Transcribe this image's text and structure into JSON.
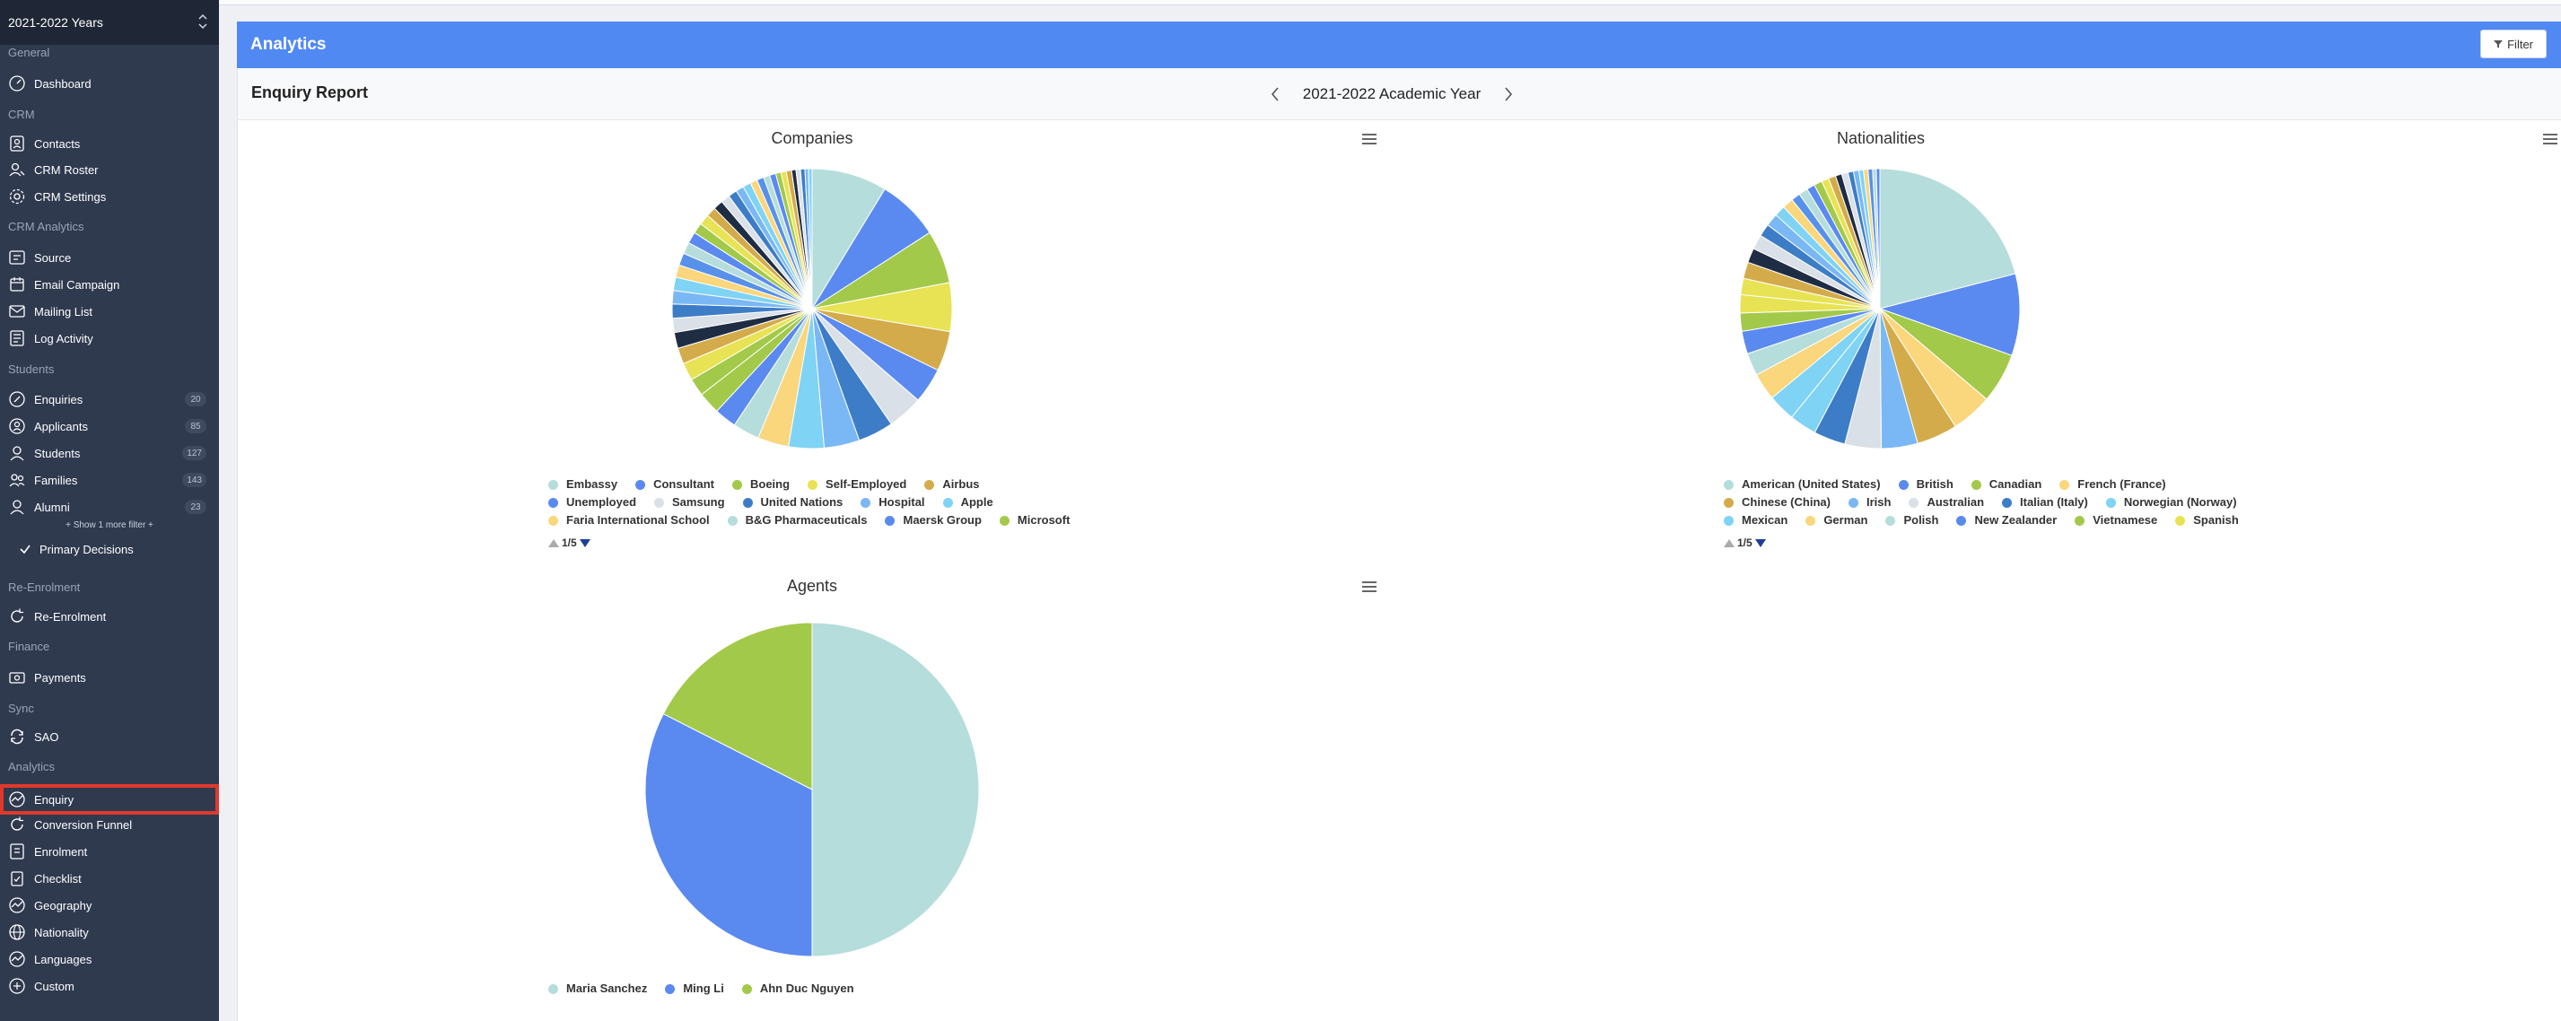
{
  "sidebar": {
    "year_select": "2021-2022 Years",
    "sections": {
      "general": "General",
      "crm": "CRM",
      "crm_analytics": "CRM Analytics",
      "students": "Students",
      "re_enrolment": "Re-Enrolment",
      "finance": "Finance",
      "sync": "Sync",
      "analytics": "Analytics"
    },
    "items": {
      "dashboard": "Dashboard",
      "contacts": "Contacts",
      "crm_roster": "CRM Roster",
      "crm_settings": "CRM Settings",
      "source": "Source",
      "email_campaign": "Email Campaign",
      "mailing_list": "Mailing List",
      "log_activity": "Log Activity",
      "enquiries": "Enquiries",
      "applicants": "Applicants",
      "students": "Students",
      "families": "Families",
      "alumni": "Alumni",
      "re_enrolment": "Re-Enrolment",
      "payments": "Payments",
      "sao": "SAO",
      "enquiry": "Enquiry",
      "conversion_funnel": "Conversion Funnel",
      "enrolment": "Enrolment",
      "checklist": "Checklist",
      "geography": "Geography",
      "nationality": "Nationality",
      "languages": "Languages",
      "custom": "Custom"
    },
    "badges": {
      "enquiries": "20",
      "applicants": "85",
      "students": "127",
      "families": "143",
      "alumni": "23"
    },
    "show_more": "+ Show 1 more filter +",
    "primary_decisions": "Primary Decisions"
  },
  "header": {
    "title": "Analytics",
    "filter_label": "Filter"
  },
  "report": {
    "title": "Enquiry Report",
    "academic_year": "2021-2022 Academic Year"
  },
  "colors": {
    "palette": [
      "#b5dddc",
      "#5a8af0",
      "#a3c94a",
      "#e8e354",
      "#d4ab4a",
      "#1f2d44",
      "#d9e0e7",
      "#3d7dc7",
      "#7ab8f5",
      "#7fd3f4",
      "#fad67c",
      "#5791ea"
    ],
    "accent": "#5189f3",
    "sidebar": "#2f3a4f",
    "highlight": "#e0392c"
  },
  "chart_data": [
    {
      "type": "pie",
      "title": "Companies",
      "legend": [
        "Embassy",
        "Consultant",
        "Boeing",
        "Self-Employed",
        "Airbus",
        "Unemployed",
        "Samsung",
        "United Nations",
        "Hospital",
        "Apple",
        "Faria International School",
        "B&G Pharmaceuticals",
        "Maersk Group",
        "Microsoft"
      ],
      "legend_colors": [
        "#b5dddc",
        "#5a8af0",
        "#a3c94a",
        "#e8e354",
        "#d4ab4a",
        "#5a8af0",
        "#d9e0e7",
        "#3d7dc7",
        "#7ab8f5",
        "#7fd3f4",
        "#fad67c",
        "#b5dddc",
        "#5a8af0",
        "#a3c94a"
      ],
      "legend_page": "1/5",
      "values": [
        8.5,
        7,
        6,
        5.5,
        4.5,
        4,
        4,
        4,
        4,
        4,
        3.5,
        3,
        2.5,
        2.5,
        2,
        2,
        1.8,
        1.8,
        1.6,
        1.6,
        1.5,
        1.5,
        1.4,
        1.4,
        1.3,
        1.3,
        1.2,
        1.2,
        1.1,
        1.1,
        1,
        1,
        0.9,
        0.9,
        0.8,
        0.8,
        0.7,
        0.7,
        0.6,
        0.6,
        0.6,
        0.5,
        0.5,
        0.5,
        0.4,
        0.4
      ]
    },
    {
      "type": "pie",
      "title": "Nationalities",
      "legend": [
        "American (United States)",
        "British",
        "Canadian",
        "French (France)",
        "Chinese (China)",
        "Irish",
        "Australian",
        "Italian (Italy)",
        "Norwegian (Norway)",
        "Mexican",
        "German",
        "Polish",
        "New Zealander",
        "Vietnamese",
        "Spanish"
      ],
      "legend_colors": [
        "#b5dddc",
        "#5a8af0",
        "#a3c94a",
        "#fad67c",
        "#d4ab4a",
        "#7ab8f5",
        "#d9e0e7",
        "#3d7dc7",
        "#7fd3f4",
        "#7fd3f4",
        "#fad67c",
        "#b5dddc",
        "#5a8af0",
        "#a3c94a",
        "#e8e354"
      ],
      "legend_page": "1/5",
      "values": [
        20,
        9,
        5.5,
        4.5,
        4.5,
        4,
        4,
        3.5,
        3,
        3,
        3,
        2.5,
        2.5,
        2,
        2,
        1.8,
        1.8,
        1.6,
        1.6,
        1.4,
        1.4,
        1.2,
        1.2,
        1,
        1,
        0.9,
        0.9,
        0.8,
        0.8,
        0.7,
        0.7,
        0.6,
        0.6,
        0.5,
        0.5,
        0.5,
        0.4,
        0.4
      ]
    },
    {
      "type": "pie",
      "title": "Agents",
      "legend": [
        "Maria Sanchez",
        "Ming Li",
        "Ahn Duc Nguyen"
      ],
      "legend_colors": [
        "#b5dddc",
        "#5a8af0",
        "#a3c94a"
      ],
      "values": [
        50,
        32.5,
        17.5
      ]
    }
  ]
}
